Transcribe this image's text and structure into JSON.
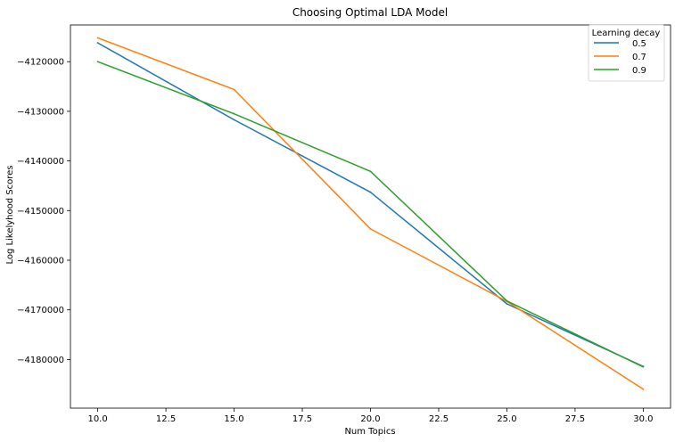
{
  "chart_data": {
    "type": "line",
    "title": "Choosing Optimal LDA Model",
    "xlabel": "Num Topics",
    "ylabel": "Log Likelyhood Scores",
    "x": [
      10,
      15,
      20,
      25,
      30
    ],
    "xlim": [
      9,
      31
    ],
    "ylim": [
      -4189800,
      -4112600
    ],
    "xticks": [
      "10.0",
      "12.5",
      "15.0",
      "17.5",
      "20.0",
      "22.5",
      "25.0",
      "27.5",
      "30.0"
    ],
    "xtick_values": [
      10,
      12.5,
      15,
      17.5,
      20,
      22.5,
      25,
      27.5,
      30
    ],
    "yticks": [
      "−4120000",
      "−4130000",
      "−4140000",
      "−4150000",
      "−4160000",
      "−4170000",
      "−4180000"
    ],
    "ytick_values": [
      -4120000,
      -4130000,
      -4140000,
      -4150000,
      -4160000,
      -4170000,
      -4180000
    ],
    "grid": false,
    "legend": {
      "title": "Learning decay",
      "position": "top-right"
    },
    "series": [
      {
        "name": "0.5",
        "color": "#1f77b4",
        "values": [
          -4116200,
          -4131700,
          -4146300,
          -4168800,
          -4181400
        ]
      },
      {
        "name": "0.7",
        "color": "#ff7f0e",
        "values": [
          -4115200,
          -4125600,
          -4153700,
          -4168300,
          -4186000
        ]
      },
      {
        "name": "0.9",
        "color": "#2ca02c",
        "values": [
          -4120000,
          -4130500,
          -4142100,
          -4168200,
          -4181500
        ]
      }
    ]
  }
}
